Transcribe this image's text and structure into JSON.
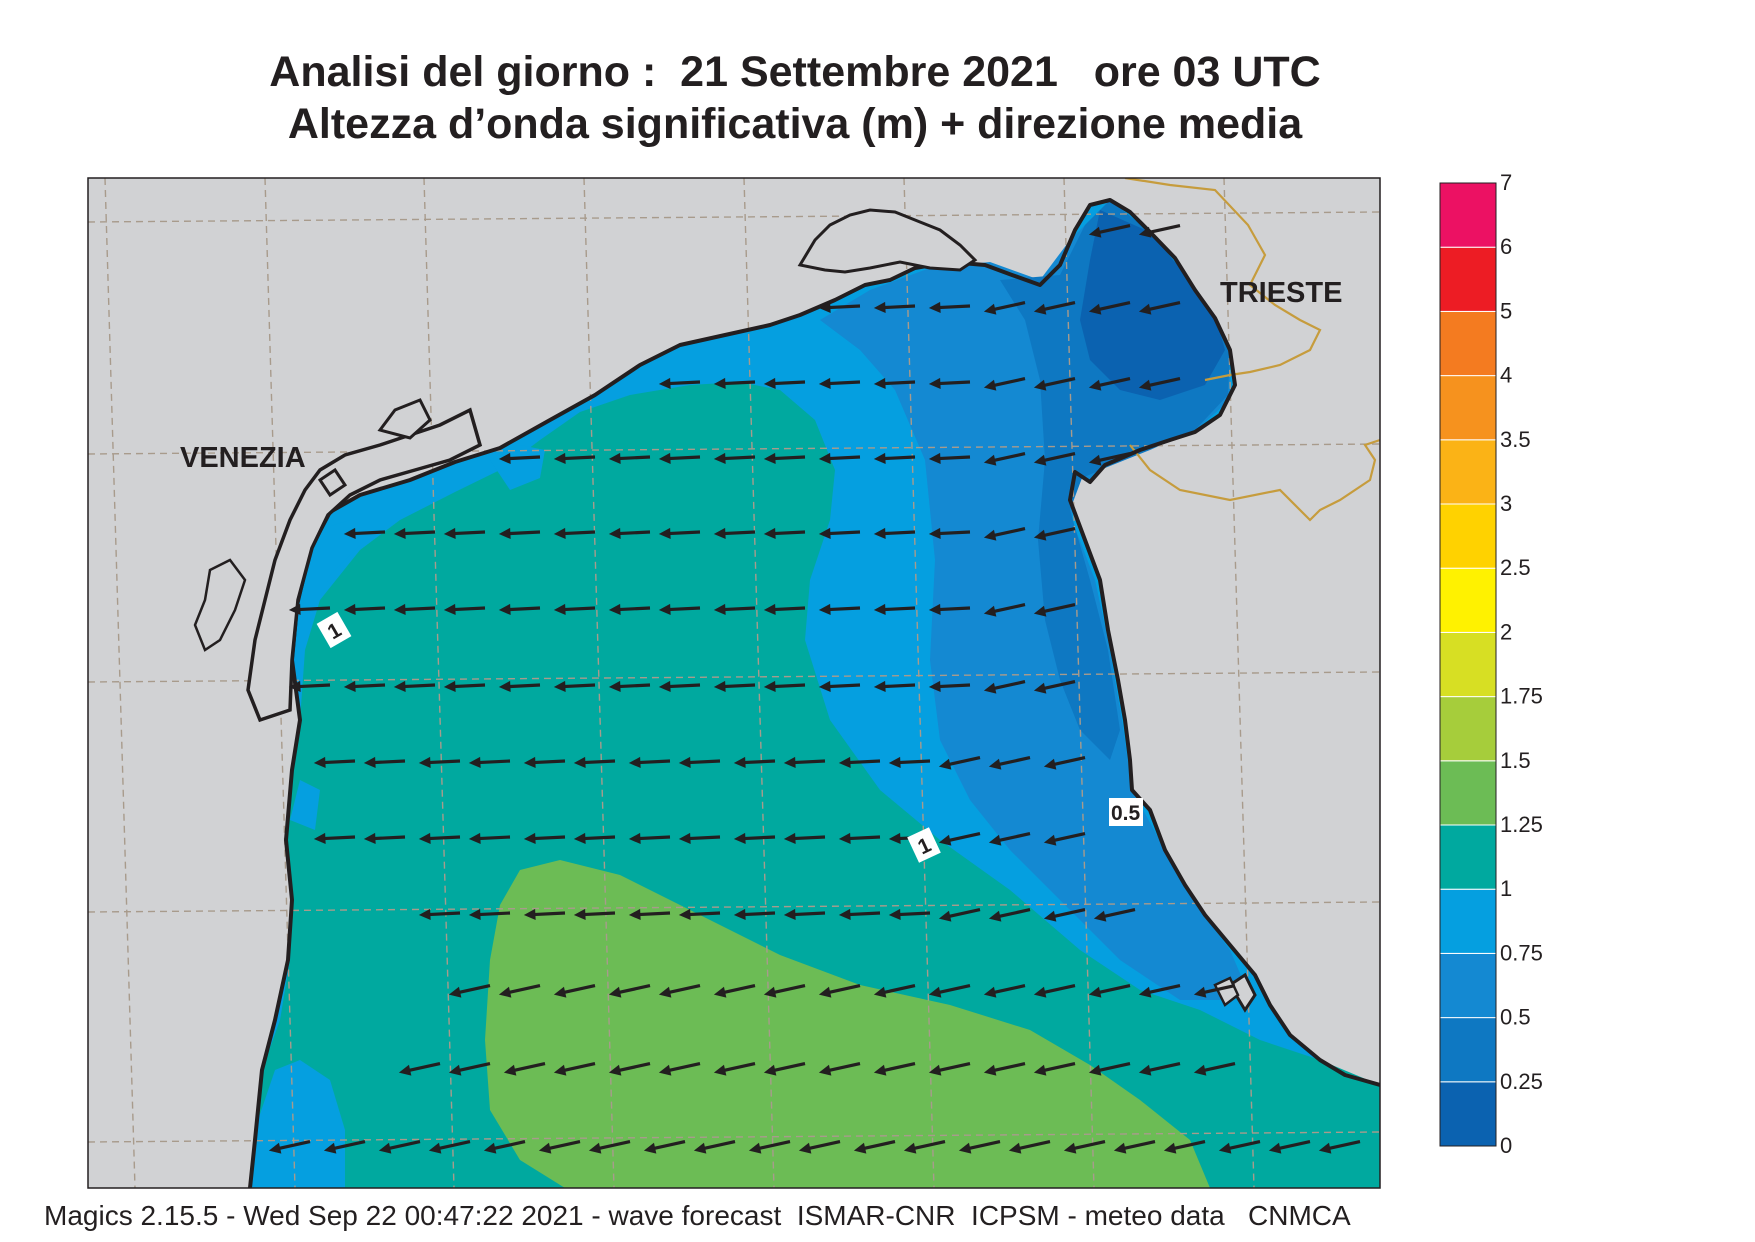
{
  "title": {
    "line1": "Analisi del giorno :  21 Settembre 2021   ore 03 UTC",
    "line2": "Altezza d’onda significativa (m) + direzione media"
  },
  "map": {
    "cities": [
      {
        "id": "venezia",
        "label": "VENEZIA"
      },
      {
        "id": "trieste",
        "label": "TRIESTE"
      }
    ],
    "contour_labels": [
      "1",
      "1",
      "0.5"
    ],
    "land_color": "#d1d2d4",
    "coast_color": "#231f20",
    "border_color": "#c69c3d",
    "grid_color": "#a89b8c"
  },
  "colorbar": {
    "bins": [
      {
        "from": "0",
        "to": "0.25",
        "color": "#0b62b0"
      },
      {
        "from": "0.25",
        "to": "0.5",
        "color": "#0e78c2"
      },
      {
        "from": "0.5",
        "to": "0.75",
        "color": "#1489d2"
      },
      {
        "from": "0.75",
        "to": "1",
        "color": "#059fe0"
      },
      {
        "from": "1",
        "to": "1.25",
        "color": "#00a99f"
      },
      {
        "from": "1.25",
        "to": "1.5",
        "color": "#6cbc55"
      },
      {
        "from": "1.5",
        "to": "1.75",
        "color": "#a6cd3b"
      },
      {
        "from": "1.75",
        "to": "2",
        "color": "#d7df23"
      },
      {
        "from": "2",
        "to": "2.5",
        "color": "#fff200"
      },
      {
        "from": "2.5",
        "to": "3",
        "color": "#ffd200"
      },
      {
        "from": "3",
        "to": "3.5",
        "color": "#fbb316"
      },
      {
        "from": "3.5",
        "to": "4",
        "color": "#f6921e"
      },
      {
        "from": "4",
        "to": "5",
        "color": "#f47b20"
      },
      {
        "from": "5",
        "to": "6",
        "color": "#ed1c24"
      },
      {
        "from": "6",
        "to": "7",
        "color": "#ec1163"
      }
    ],
    "tick_labels": [
      "0",
      "0.25",
      "0.5",
      "0.75",
      "1",
      "1.25",
      "1.5",
      "1.75",
      "2",
      "2.5",
      "3",
      "3.5",
      "4",
      "5",
      "6",
      "7"
    ]
  },
  "footer": "Magics 2.15.5 - Wed Sep 22 00:47:22 2021 - wave forecast  ISMAR-CNR  ICPSM - meteo data   CNMCA"
}
